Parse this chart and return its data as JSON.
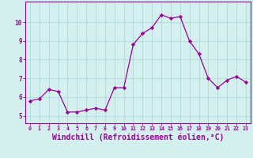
{
  "x": [
    0,
    1,
    2,
    3,
    4,
    5,
    6,
    7,
    8,
    9,
    10,
    11,
    12,
    13,
    14,
    15,
    16,
    17,
    18,
    19,
    20,
    21,
    22,
    23
  ],
  "y": [
    5.8,
    5.9,
    6.4,
    6.3,
    5.2,
    5.2,
    5.3,
    5.4,
    5.3,
    6.5,
    6.5,
    8.8,
    9.4,
    9.7,
    10.4,
    10.2,
    10.3,
    9.0,
    8.3,
    7.0,
    6.5,
    6.9,
    7.1,
    6.8
  ],
  "line_color": "#990099",
  "marker": "D",
  "marker_size": 2.2,
  "xlabel": "Windchill (Refroidissement éolien,°C)",
  "xlabel_fontsize": 7,
  "xtick_labels": [
    "0",
    "1",
    "2",
    "3",
    "4",
    "5",
    "6",
    "7",
    "8",
    "9",
    "10",
    "11",
    "12",
    "13",
    "14",
    "15",
    "16",
    "17",
    "18",
    "19",
    "20",
    "21",
    "22",
    "23"
  ],
  "ytick_labels": [
    "5",
    "6",
    "7",
    "8",
    "9",
    "10"
  ],
  "ytick_vals": [
    5,
    6,
    7,
    8,
    9,
    10
  ],
  "ylim": [
    4.6,
    11.1
  ],
  "xlim": [
    -0.5,
    23.5
  ],
  "background_color": "#d4f0ee",
  "grid_color": "#b0d8d8",
  "figwidth": 3.2,
  "figheight": 2.0,
  "dpi": 100
}
